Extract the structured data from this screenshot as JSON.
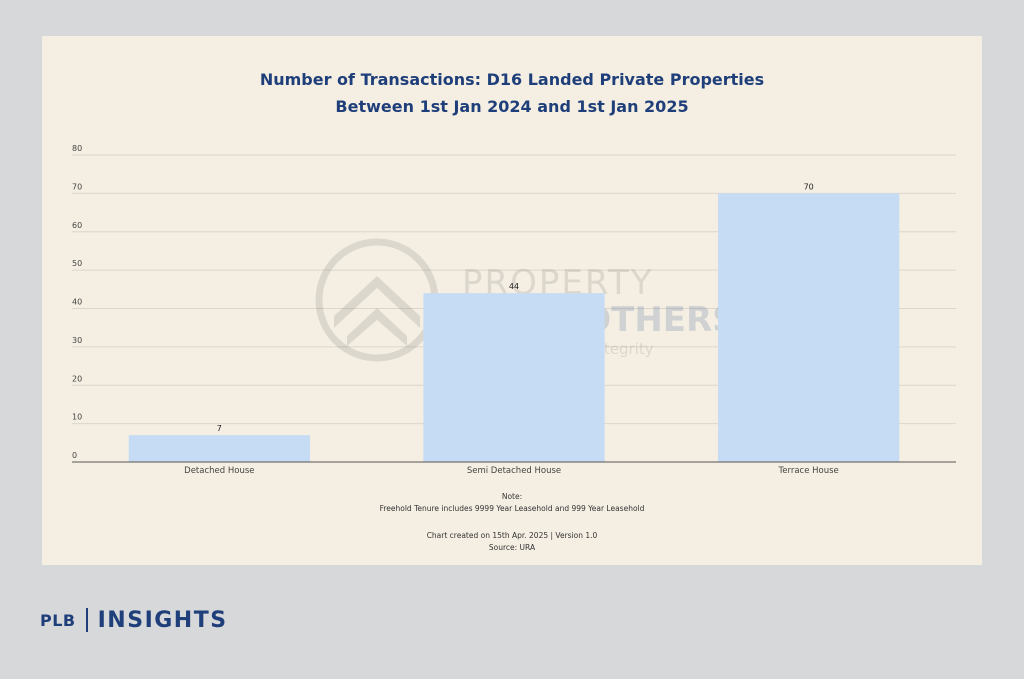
{
  "chart_data": {
    "type": "bar",
    "title_line1": "Number of Transactions: D16 Landed Private Properties",
    "title_line2": "Between 1st Jan 2024 and 1st Jan 2025",
    "categories": [
      "Detached House",
      "Semi Detached House",
      "Terrace House"
    ],
    "values": [
      7,
      44,
      70
    ],
    "data_labels": [
      "7",
      "44",
      "70"
    ],
    "y_ticks": [
      0,
      10,
      20,
      30,
      40,
      50,
      60,
      70,
      80
    ],
    "ylim": [
      0,
      80
    ],
    "grid": true,
    "bar_color": "#c6dcf4"
  },
  "notes": {
    "note_label": "Note:",
    "note_text": "Freehold Tenure includes 9999 Year Leasehold and 999 Year Leasehold",
    "created": "Chart created on 15th Apr. 2025 | Version 1.0",
    "source": "Source: URA"
  },
  "watermark": {
    "line1": "PROPERTY",
    "line2": "LIMBROTHERS",
    "tagline": "Real Estate with Integrity"
  },
  "brand": {
    "plb": "PLB",
    "insights": "INSIGHTS"
  }
}
